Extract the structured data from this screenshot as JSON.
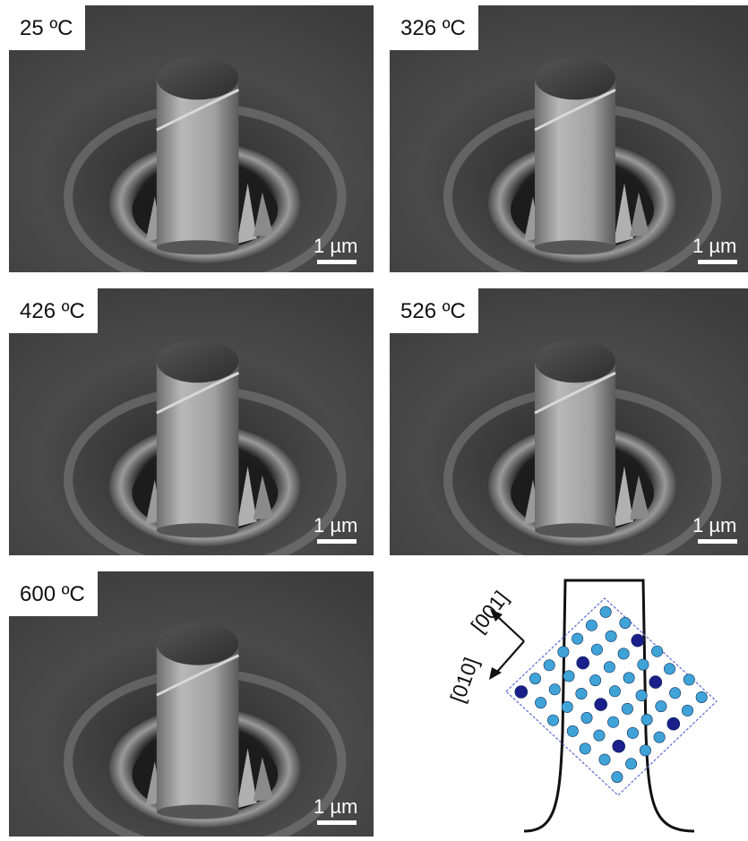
{
  "panels": [
    {
      "id": "p1",
      "temperature": "25 ºC",
      "scale_bar": "1 µm"
    },
    {
      "id": "p2",
      "temperature": "326 ºC",
      "scale_bar": "1 µm"
    },
    {
      "id": "p3",
      "temperature": "426 ºC",
      "scale_bar": "1 µm"
    },
    {
      "id": "p4",
      "temperature": "526 ºC",
      "scale_bar": "1 µm"
    },
    {
      "id": "p5",
      "temperature": "600 ºC",
      "scale_bar": "1 µm"
    }
  ],
  "schematic": {
    "direction_1": "[001]",
    "direction_2": "[010]"
  },
  "colors": {
    "atom_light": "#3fa3d8",
    "atom_dark": "#1a1f8a",
    "cell_outline": "#5b6bd6"
  }
}
